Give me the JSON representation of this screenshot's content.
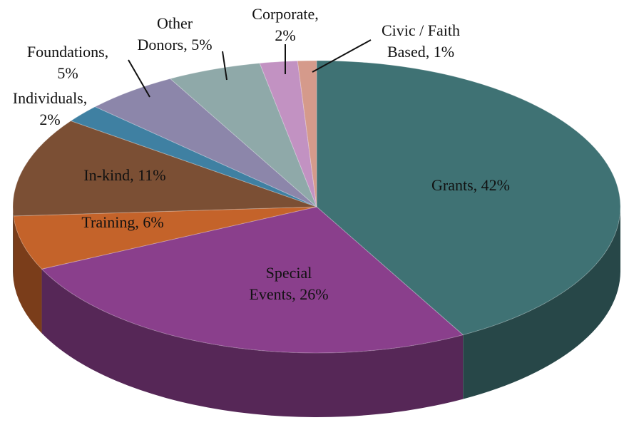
{
  "chart_data": {
    "type": "pie",
    "value_labels": [
      "Grants, 42%",
      "Special\nEvents, 26%",
      "Training, 6%",
      "In-kind, 11%",
      "Individuals,\n2%",
      "Foundations,\n5%",
      "Other\nDonors, 5%",
      "Corporate,\n2%",
      "Civic / Faith\nBased, 1%"
    ],
    "values": [
      42,
      26,
      6,
      11,
      2,
      5,
      5,
      2,
      1
    ],
    "colors": [
      "#3f7274",
      "#8a3f8c",
      "#c4632a",
      "#7b4f34",
      "#3f80a2",
      "#8c86aa",
      "#8fa9a9",
      "#c292c2",
      "#d59a8b"
    ]
  }
}
